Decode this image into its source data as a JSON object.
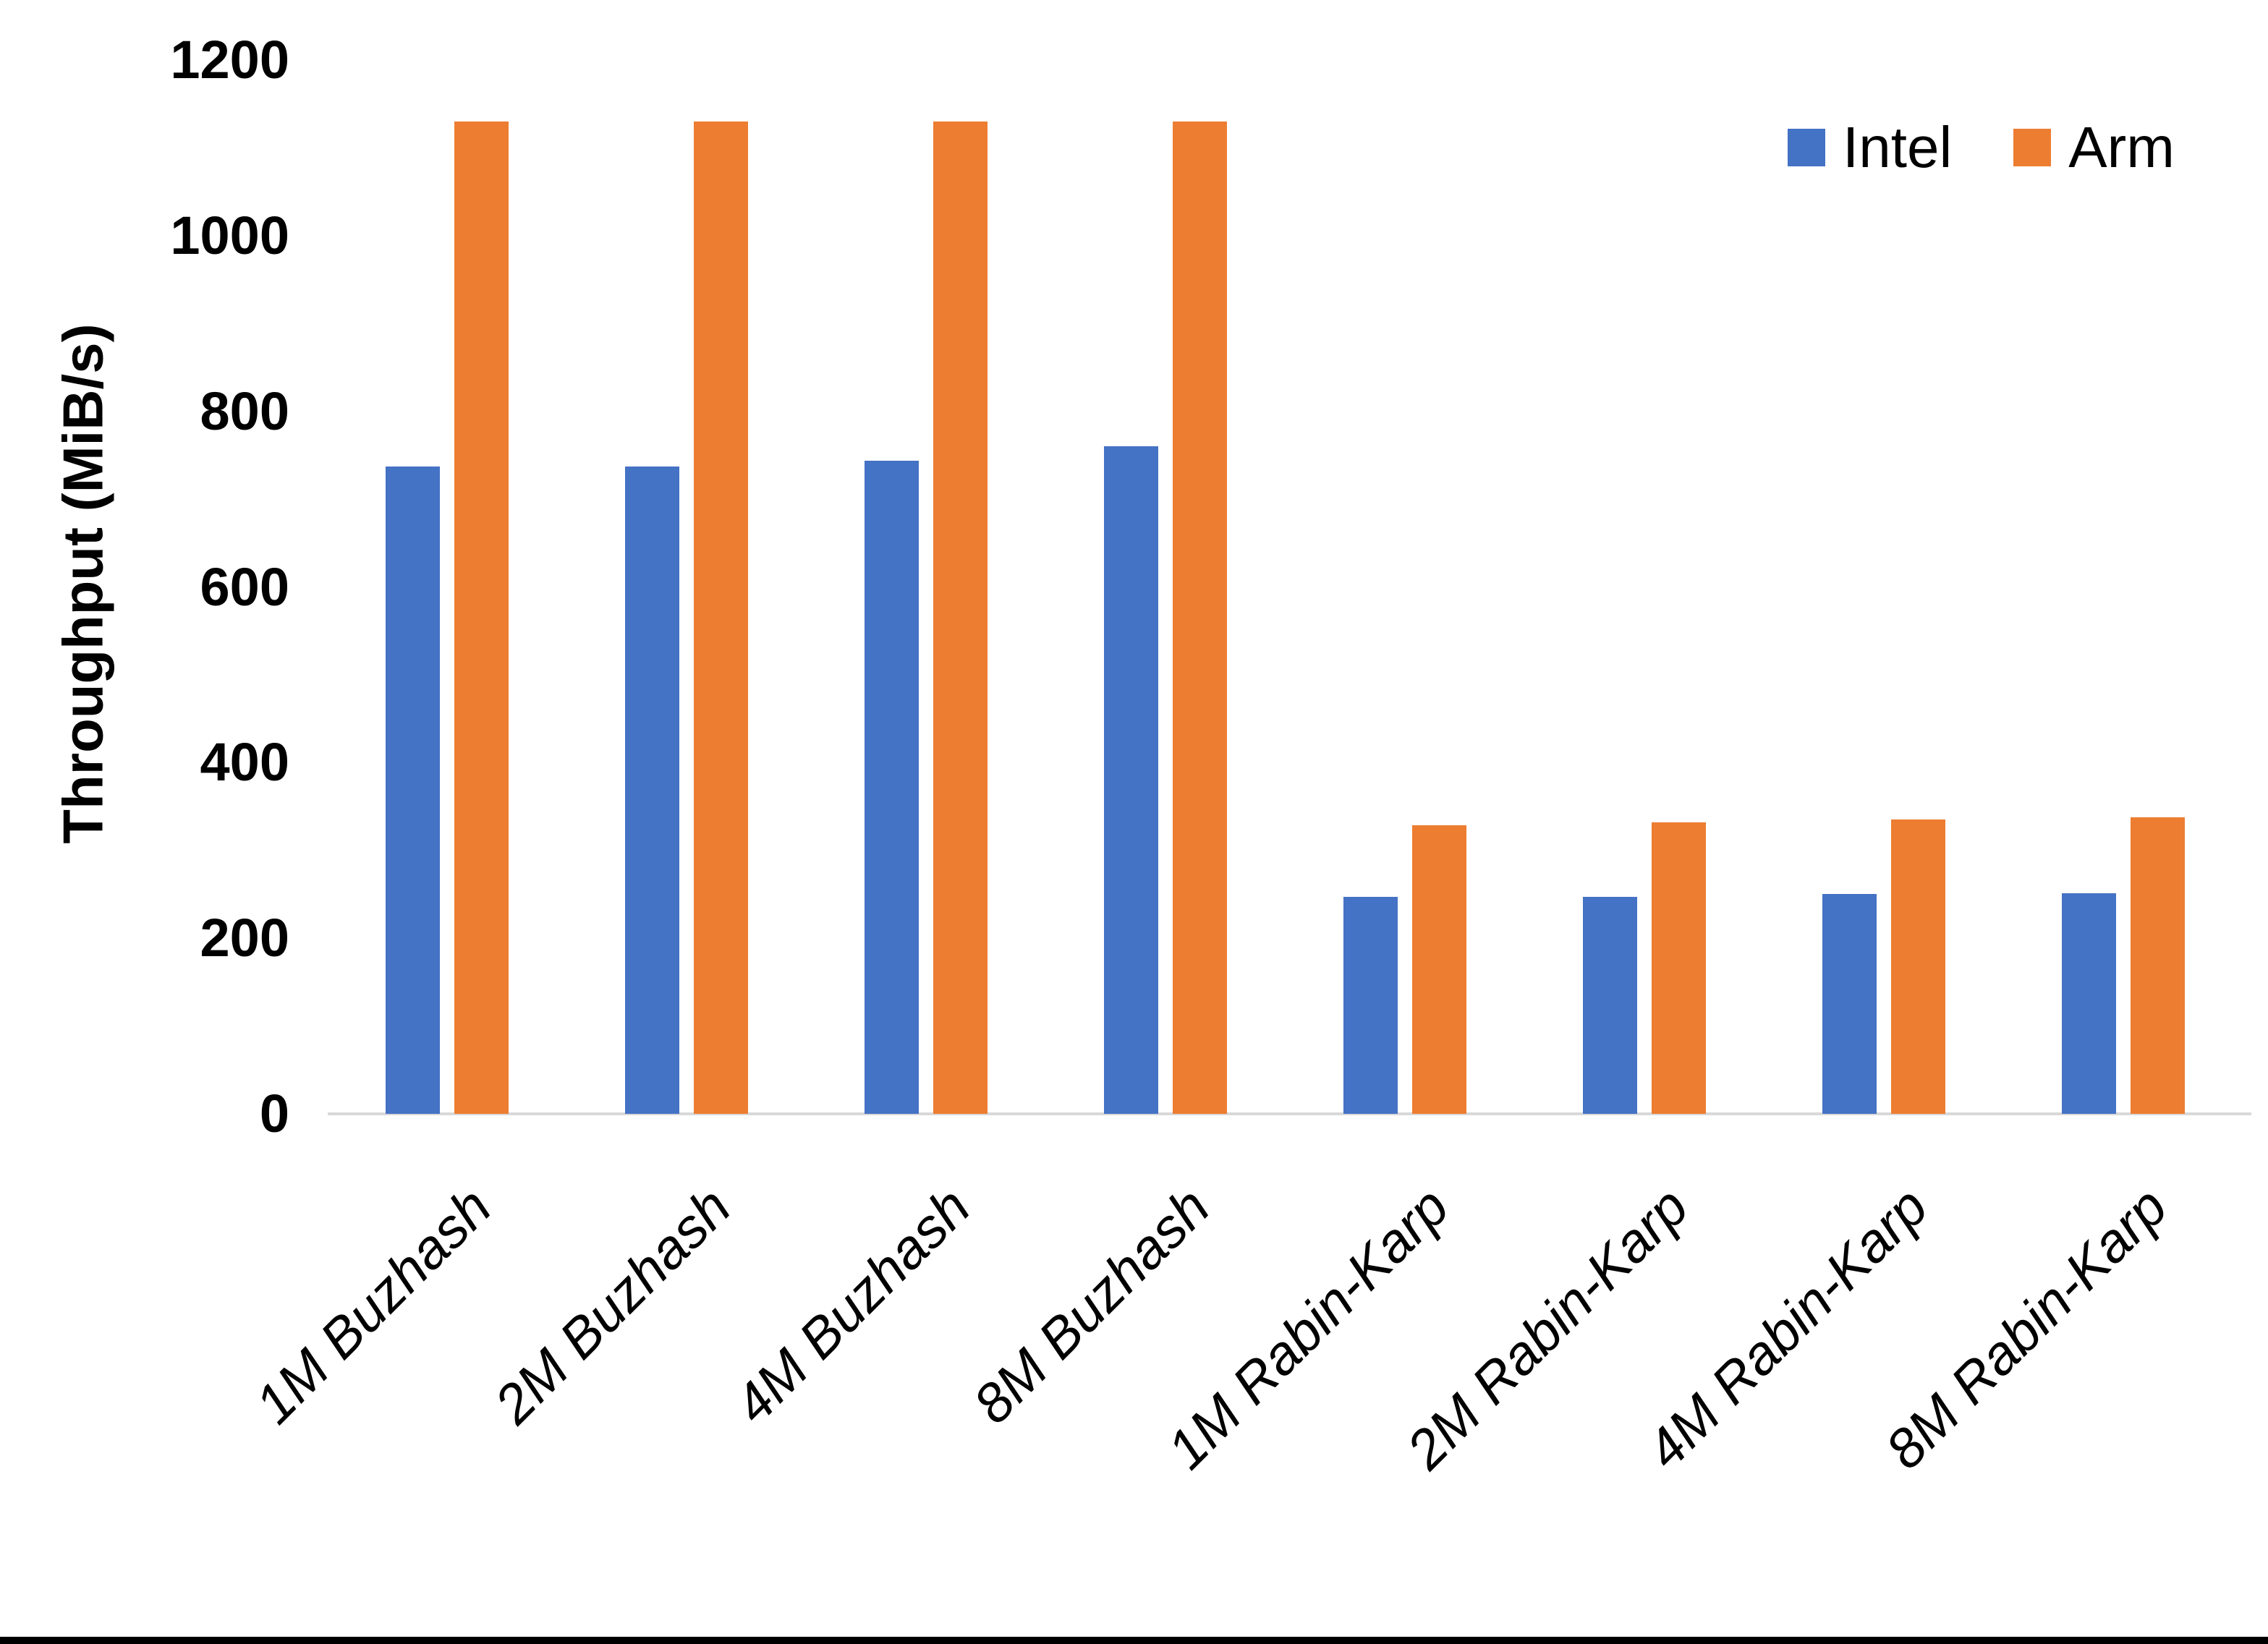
{
  "chart_data": {
    "type": "bar",
    "title": "",
    "categories": [
      "1M Buzhash",
      "2M Buzhash",
      "4M Buzhash",
      "8M Buzhash",
      "1M Rabin-Karp",
      "2M Rabin-Karp",
      "4M Rabin-Karp",
      "8M Rabin-Karp"
    ],
    "series": [
      {
        "name": "Intel",
        "color": "#4472C4",
        "values": [
          737,
          737,
          744,
          760,
          247,
          247,
          250,
          251
        ]
      },
      {
        "name": "Arm",
        "color": "#ED7D31",
        "values": [
          1130,
          1130,
          1130,
          1130,
          329,
          332,
          335,
          338
        ]
      }
    ],
    "xlabel": "",
    "ylabel": "Throughput (MiB/s)",
    "ylim": [
      0,
      1200
    ],
    "yticks": [
      0,
      200,
      400,
      600,
      800,
      1000,
      1200
    ],
    "grid": false,
    "legend_position": "top-right",
    "axis_line_color": "#D9D9D9",
    "text_color": "#000000"
  }
}
